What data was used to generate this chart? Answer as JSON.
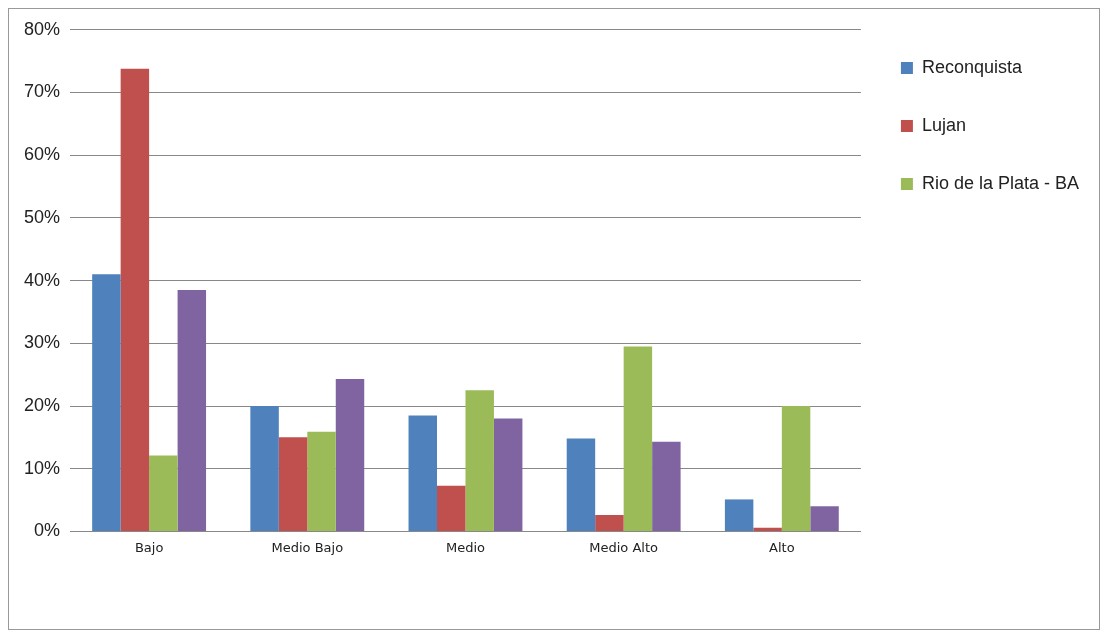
{
  "chart_data": {
    "type": "bar",
    "categories": [
      "Bajo",
      "Medio Bajo",
      "Medio",
      "Medio Alto",
      "Alto"
    ],
    "series": [
      {
        "name": "Reconquista",
        "color": "#4f81bd",
        "values": [
          41,
          20,
          18.5,
          14.8,
          5.1
        ]
      },
      {
        "name": "Lujan",
        "color": "#c0504d",
        "values": [
          73.8,
          15,
          7.3,
          2.6,
          0.6
        ]
      },
      {
        "name": "Rio de la Plata - BA",
        "color": "#9bbb59",
        "values": [
          12.1,
          15.9,
          22.5,
          29.5,
          20
        ]
      },
      {
        "color": "#8064a2",
        "values": [
          38.5,
          24.3,
          18,
          14.3,
          4
        ]
      }
    ],
    "ylim": [
      0,
      80
    ],
    "yticks": [
      {
        "value": 0,
        "label": "0%"
      },
      {
        "value": 10,
        "label": "10%"
      },
      {
        "value": 20,
        "label": "20%"
      },
      {
        "value": 30,
        "label": "30%"
      },
      {
        "value": 40,
        "label": "40%"
      },
      {
        "value": 50,
        "label": "50%"
      },
      {
        "value": 60,
        "label": "60%"
      },
      {
        "value": 70,
        "label": "70%"
      },
      {
        "value": 80,
        "label": "80%"
      }
    ],
    "grid": "y",
    "legend": "right"
  }
}
